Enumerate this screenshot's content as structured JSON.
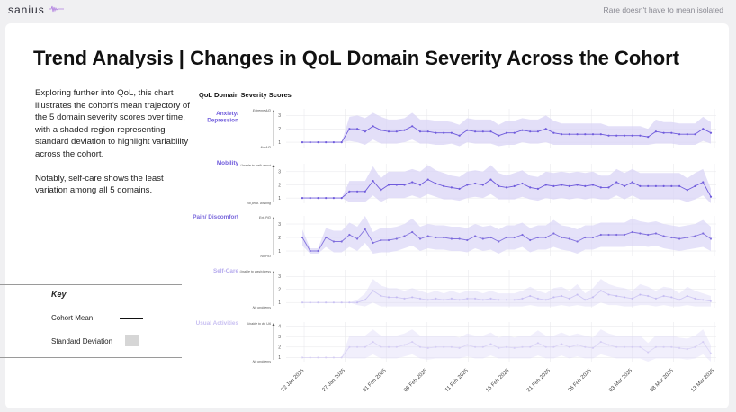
{
  "header": {
    "logo": "sanius",
    "tagline": "Rare doesn't have to mean isolated"
  },
  "page": {
    "title": "Trend Analysis | Changes in QoL Domain Severity Across the Cohort",
    "intro_1": "Exploring further into QoL, this chart illustrates the cohort's mean trajectory of the 5 domain severity scores over time, with a shaded region representing standard deviation to highlight variability across the cohort.",
    "intro_2": "Notably, self-care shows the least variation among all 5 domains."
  },
  "key": {
    "title": "Key",
    "mean_label": "Cohort Mean",
    "sd_label": "Standard Deviation"
  },
  "colors": {
    "brand": "#6f5bdc",
    "band": "#d9d4f6",
    "grid": "#e6e6ea"
  },
  "chart_data": {
    "type": "line",
    "title": "QoL Domain Severity Scores",
    "x_ticks": [
      "22 Jan 2025",
      "27 Jan 2025",
      "01 Feb 2025",
      "06 Feb 2025",
      "11 Feb 2025",
      "16 Feb 2025",
      "21 Feb 2025",
      "26 Feb 2025",
      "03 Mar 2025",
      "08 Mar 2025",
      "13 Mar 2025"
    ],
    "x_start": "2025-01-22",
    "grid": true,
    "panels": [
      {
        "name": "Anxiety/ Depression",
        "color": "#6f5bdc",
        "alpha": 1.0,
        "top_label": "Extreme A/D",
        "bottom_label": "No A/D",
        "ticks": [
          1,
          2,
          3
        ],
        "ylim": [
          0.6,
          3.5
        ],
        "mean": [
          1.0,
          1.0,
          1.0,
          1.0,
          1.0,
          1.0,
          2.0,
          2.0,
          1.8,
          2.2,
          1.9,
          1.8,
          1.8,
          1.9,
          2.2,
          1.8,
          1.8,
          1.7,
          1.7,
          1.7,
          1.5,
          1.9,
          1.8,
          1.8,
          1.8,
          1.5,
          1.7,
          1.7,
          1.9,
          1.8,
          1.8,
          2.0,
          1.7,
          1.6,
          1.6,
          1.6,
          1.6,
          1.6,
          1.6,
          1.5,
          1.5,
          1.5,
          1.5,
          1.5,
          1.4,
          1.8,
          1.7,
          1.7,
          1.6,
          1.6,
          1.6,
          2.0,
          1.7
        ],
        "sd": [
          0,
          0,
          0,
          0,
          0,
          0,
          0.9,
          1.0,
          1.0,
          1.0,
          1.0,
          0.9,
          0.9,
          0.9,
          1.0,
          0.9,
          0.9,
          0.9,
          0.9,
          0.8,
          0.8,
          0.9,
          0.9,
          0.9,
          0.9,
          0.8,
          0.9,
          0.9,
          0.9,
          0.9,
          0.9,
          1.0,
          0.9,
          0.8,
          0.8,
          0.8,
          0.8,
          0.8,
          0.8,
          0.7,
          0.7,
          0.7,
          0.7,
          0.7,
          0.6,
          0.9,
          0.8,
          0.8,
          0.8,
          0.8,
          0.8,
          0.9,
          0.8
        ]
      },
      {
        "name": "Mobility",
        "color": "#6f5bdc",
        "alpha": 1.0,
        "top_label": "Unable to walk about",
        "bottom_label": "No prob. walking",
        "ticks": [
          1,
          2,
          3
        ],
        "ylim": [
          0.6,
          3.6
        ],
        "mean": [
          1.0,
          1.0,
          1.0,
          1.0,
          1.0,
          1.0,
          1.5,
          1.5,
          1.5,
          2.3,
          1.6,
          2.0,
          2.0,
          2.0,
          2.2,
          2.0,
          2.4,
          2.1,
          1.9,
          1.8,
          1.7,
          2.0,
          2.1,
          2.0,
          2.4,
          1.9,
          1.8,
          1.9,
          2.1,
          1.8,
          1.7,
          2.0,
          1.9,
          2.0,
          1.9,
          2.0,
          1.9,
          2.0,
          1.8,
          1.8,
          2.2,
          1.9,
          2.2,
          1.9,
          1.9,
          1.9,
          1.9,
          1.9,
          1.9,
          1.6,
          1.9,
          2.2,
          1.1
        ],
        "sd": [
          0,
          0,
          0,
          0,
          0,
          0,
          0.8,
          0.8,
          0.8,
          1.1,
          0.9,
          1.0,
          1.0,
          1.0,
          1.0,
          1.0,
          1.1,
          1.0,
          1.0,
          0.9,
          0.9,
          1.0,
          1.0,
          1.0,
          1.1,
          1.0,
          0.9,
          1.0,
          1.0,
          0.9,
          0.9,
          1.0,
          1.0,
          1.0,
          1.0,
          1.0,
          1.0,
          1.0,
          0.9,
          0.9,
          1.0,
          1.0,
          1.0,
          1.0,
          1.0,
          1.0,
          1.0,
          1.0,
          1.0,
          0.9,
          1.0,
          1.0,
          0.6
        ]
      },
      {
        "name": "Pain/ Discomfort",
        "color": "#7a68dc",
        "alpha": 0.9,
        "top_label": "Ext. P/D",
        "bottom_label": "No P/D",
        "ticks": [
          1,
          2,
          3
        ],
        "ylim": [
          0.6,
          3.6
        ],
        "mean": [
          2.0,
          1.0,
          1.0,
          2.0,
          1.7,
          1.7,
          2.2,
          1.9,
          2.6,
          1.6,
          1.8,
          1.8,
          1.9,
          2.1,
          2.4,
          1.9,
          2.1,
          2.0,
          2.0,
          1.9,
          1.9,
          1.8,
          2.1,
          1.9,
          2.0,
          1.7,
          2.0,
          2.0,
          2.2,
          1.8,
          2.0,
          2.0,
          2.3,
          2.0,
          1.9,
          1.7,
          2.0,
          2.0,
          2.2,
          2.2,
          2.2,
          2.2,
          2.4,
          2.3,
          2.2,
          2.3,
          2.1,
          2.0,
          1.9,
          2.0,
          2.1,
          2.3,
          1.9
        ],
        "sd": [
          0.6,
          0.2,
          0.2,
          0.7,
          0.8,
          0.8,
          0.9,
          0.9,
          1.0,
          0.8,
          0.9,
          0.9,
          0.9,
          0.9,
          1.0,
          0.9,
          0.9,
          0.9,
          0.9,
          0.9,
          0.9,
          0.9,
          0.9,
          0.9,
          0.9,
          0.9,
          0.9,
          0.9,
          0.9,
          0.9,
          0.9,
          0.9,
          1.0,
          0.9,
          0.9,
          0.9,
          0.9,
          0.9,
          0.9,
          0.9,
          0.9,
          0.9,
          1.0,
          0.9,
          0.9,
          0.9,
          0.9,
          0.9,
          0.9,
          0.9,
          0.9,
          1.0,
          0.9
        ]
      },
      {
        "name": "Self-Care",
        "color": "#b7acee",
        "alpha": 0.55,
        "top_label": "Unable to wash/dress",
        "bottom_label": "No problems",
        "ticks": [
          1,
          2,
          3
        ],
        "ylim": [
          0.6,
          3.5
        ],
        "mean": [
          1.0,
          1.0,
          1.0,
          1.0,
          1.0,
          1.0,
          1.0,
          1.0,
          1.2,
          1.9,
          1.5,
          1.4,
          1.4,
          1.3,
          1.4,
          1.3,
          1.2,
          1.3,
          1.2,
          1.3,
          1.2,
          1.3,
          1.3,
          1.2,
          1.3,
          1.2,
          1.2,
          1.2,
          1.3,
          1.5,
          1.3,
          1.2,
          1.4,
          1.5,
          1.3,
          1.6,
          1.2,
          1.4,
          1.9,
          1.6,
          1.5,
          1.4,
          1.3,
          1.6,
          1.5,
          1.3,
          1.5,
          1.4,
          1.2,
          1.5,
          1.3,
          1.2,
          1.1
        ],
        "sd": [
          0,
          0,
          0,
          0,
          0,
          0,
          0,
          0.2,
          0.5,
          0.9,
          0.8,
          0.7,
          0.7,
          0.6,
          0.7,
          0.6,
          0.5,
          0.6,
          0.5,
          0.6,
          0.5,
          0.6,
          0.6,
          0.5,
          0.6,
          0.5,
          0.5,
          0.5,
          0.6,
          0.7,
          0.6,
          0.5,
          0.7,
          0.7,
          0.6,
          0.8,
          0.5,
          0.7,
          0.9,
          0.8,
          0.7,
          0.7,
          0.6,
          0.8,
          0.7,
          0.6,
          0.7,
          0.7,
          0.5,
          0.7,
          0.6,
          0.5,
          0.4
        ]
      },
      {
        "name": "Usual Activities",
        "color": "#c9c0f2",
        "alpha": 0.5,
        "top_label": "Unable to do UA",
        "bottom_label": "No problems",
        "ticks": [
          1,
          2,
          3,
          4
        ],
        "ylim": [
          0.6,
          4.4
        ],
        "mean": [
          1.0,
          1.0,
          1.0,
          1.0,
          1.0,
          1.0,
          2.0,
          2.0,
          2.0,
          2.5,
          2.0,
          2.0,
          2.0,
          2.2,
          2.5,
          2.0,
          1.9,
          2.0,
          2.0,
          2.0,
          1.9,
          2.2,
          2.0,
          2.0,
          2.3,
          1.9,
          2.0,
          1.9,
          2.0,
          2.0,
          2.4,
          2.0,
          2.0,
          2.3,
          2.0,
          2.2,
          2.0,
          1.9,
          2.5,
          2.2,
          2.0,
          2.0,
          2.0,
          2.0,
          1.5,
          2.0,
          2.0,
          2.0,
          1.9,
          1.8,
          2.0,
          2.5,
          1.4
        ],
        "sd": [
          0,
          0,
          0,
          0,
          0,
          0,
          1.1,
          1.1,
          1.1,
          1.2,
          1.1,
          1.1,
          1.1,
          1.1,
          1.2,
          1.1,
          1.1,
          1.1,
          1.1,
          1.1,
          1.0,
          1.1,
          1.1,
          1.1,
          1.1,
          1.0,
          1.1,
          1.0,
          1.1,
          1.1,
          1.2,
          1.1,
          1.1,
          1.1,
          1.1,
          1.1,
          1.1,
          1.0,
          1.2,
          1.1,
          1.1,
          1.1,
          1.1,
          1.1,
          0.9,
          1.1,
          1.1,
          1.1,
          1.0,
          1.0,
          1.1,
          1.2,
          0.8
        ]
      }
    ]
  }
}
